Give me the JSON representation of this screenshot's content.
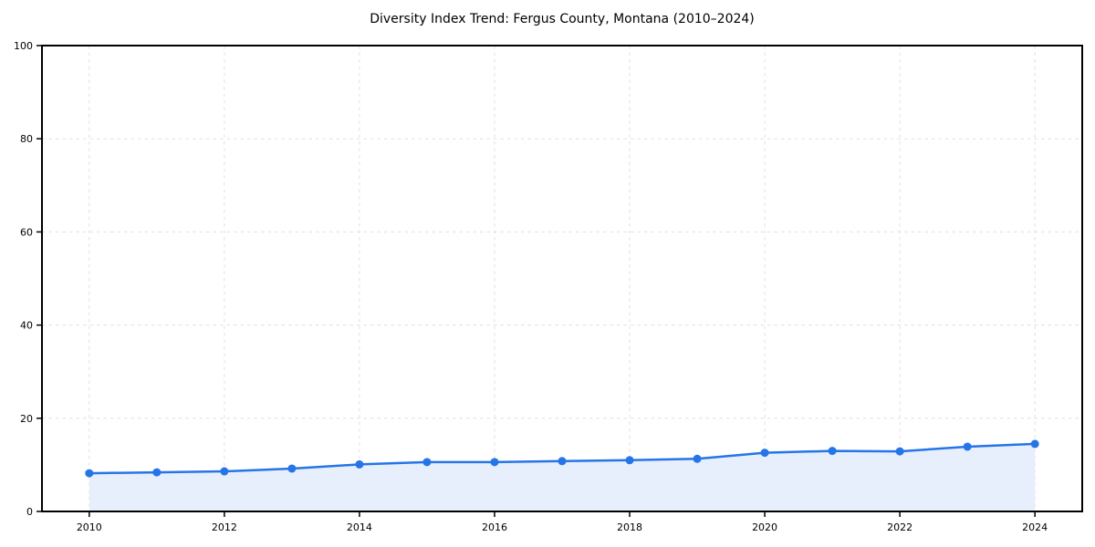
{
  "chart_data": {
    "type": "line",
    "title": "Diversity Index Trend: Fergus County, Montana (2010–2024)",
    "x": [
      2010,
      2011,
      2012,
      2013,
      2014,
      2015,
      2016,
      2017,
      2018,
      2019,
      2020,
      2021,
      2022,
      2023,
      2024
    ],
    "series": [
      {
        "name": "Diversity Index",
        "values": [
          8.2,
          8.4,
          8.6,
          9.2,
          10.1,
          10.6,
          10.6,
          10.8,
          11.0,
          11.3,
          12.6,
          13.0,
          12.9,
          13.9,
          14.5
        ]
      }
    ],
    "xlabel": "",
    "ylabel": "",
    "xlim": [
      2009.3,
      2024.7
    ],
    "ylim": [
      0,
      100
    ],
    "xticks": [
      2010,
      2012,
      2014,
      2016,
      2018,
      2020,
      2022,
      2024
    ],
    "yticks": [
      0,
      20,
      40,
      60,
      80,
      100
    ],
    "grid": true,
    "grid_style": "dashed",
    "legend": false,
    "area_fill": true,
    "marker": "circle",
    "style": {
      "line_color": "#2575e8",
      "marker_color": "#2575e8",
      "fill_color": "#e8effc",
      "grid_color": "#e0e0e0",
      "axis_color": "#000000",
      "text_color": "#000000",
      "background": "#ffffff"
    }
  }
}
